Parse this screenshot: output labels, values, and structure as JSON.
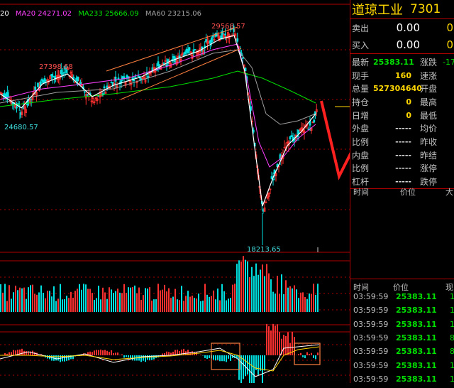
{
  "chart": {
    "ma_legend": [
      {
        "text": "20",
        "color": "#ffffff"
      },
      {
        "text": "MA20 24271.02",
        "color": "#ff40ff"
      },
      {
        "text": "MA233 25666.09",
        "color": "#00e000"
      },
      {
        "text": "MA60 23215.06",
        "color": "#a0a0a0"
      }
    ],
    "labels": {
      "high1": "27398.68",
      "high2": "29568.57",
      "low1": "24680.57",
      "low2": "18213.65"
    },
    "colors": {
      "up": "#ff3030",
      "down": "#00e0e0",
      "grid": "#b00000",
      "annotation": "#ff2020",
      "box": "#ff8040"
    }
  },
  "panel": {
    "name": "道琼工业",
    "code": "7301",
    "sell_label": "卖出",
    "sell_price": "0.00",
    "sell_vol": "0",
    "buy_label": "买入",
    "buy_price": "0.00",
    "buy_vol": "0",
    "stats": [
      {
        "l1": "最新",
        "v1": "25383.11",
        "c1": "g",
        "l2": "涨跌",
        "v2": "-17..",
        "c2": "g"
      },
      {
        "l1": "现手",
        "v1": "160",
        "c1": "y",
        "l2": "速涨",
        "v2": "",
        "c2": "w"
      },
      {
        "l1": "总量",
        "v1": "527304640",
        "c1": "y",
        "l2": "开盘",
        "v2": "",
        "c2": "w"
      },
      {
        "l1": "持仓",
        "v1": "0",
        "c1": "y",
        "l2": "最高",
        "v2": "",
        "c2": "w"
      },
      {
        "l1": "日增",
        "v1": "0",
        "c1": "y",
        "l2": "最低",
        "v2": "",
        "c2": "w"
      },
      {
        "l1": "外盘",
        "v1": "-----",
        "c1": "w",
        "l2": "均价",
        "v2": "",
        "c2": "w"
      },
      {
        "l1": "比例",
        "v1": "-----",
        "c1": "w",
        "l2": "昨收",
        "v2": "",
        "c2": "w"
      },
      {
        "l1": "内盘",
        "v1": "-----",
        "c1": "w",
        "l2": "昨结",
        "v2": "",
        "c2": "w"
      },
      {
        "l1": "比例",
        "v1": "-----",
        "c1": "w",
        "l2": "涨停",
        "v2": "",
        "c2": "w"
      },
      {
        "l1": "杠杆",
        "v1": "-----",
        "c1": "w",
        "l2": "跌停",
        "v2": "",
        "c2": "w"
      }
    ],
    "mini_headers": [
      "时间",
      "价位",
      "大"
    ],
    "tick_headers": [
      "时间",
      "价位",
      "现"
    ],
    "ticks": [
      {
        "time": "03:59:59",
        "price": "25383.11",
        "vol": "1"
      },
      {
        "time": "03:59:59",
        "price": "25383.11",
        "vol": "1"
      },
      {
        "time": "03:59:59",
        "price": "25383.11",
        "vol": "1"
      },
      {
        "time": "03:59:59",
        "price": "25383.11",
        "vol": "8"
      },
      {
        "time": "03:59:59",
        "price": "25383.11",
        "vol": "8"
      },
      {
        "time": "03:59:59",
        "price": "25383.11",
        "vol": "1"
      },
      {
        "time": "03:59:59",
        "price": "25383.11",
        "vol": "1"
      }
    ]
  }
}
